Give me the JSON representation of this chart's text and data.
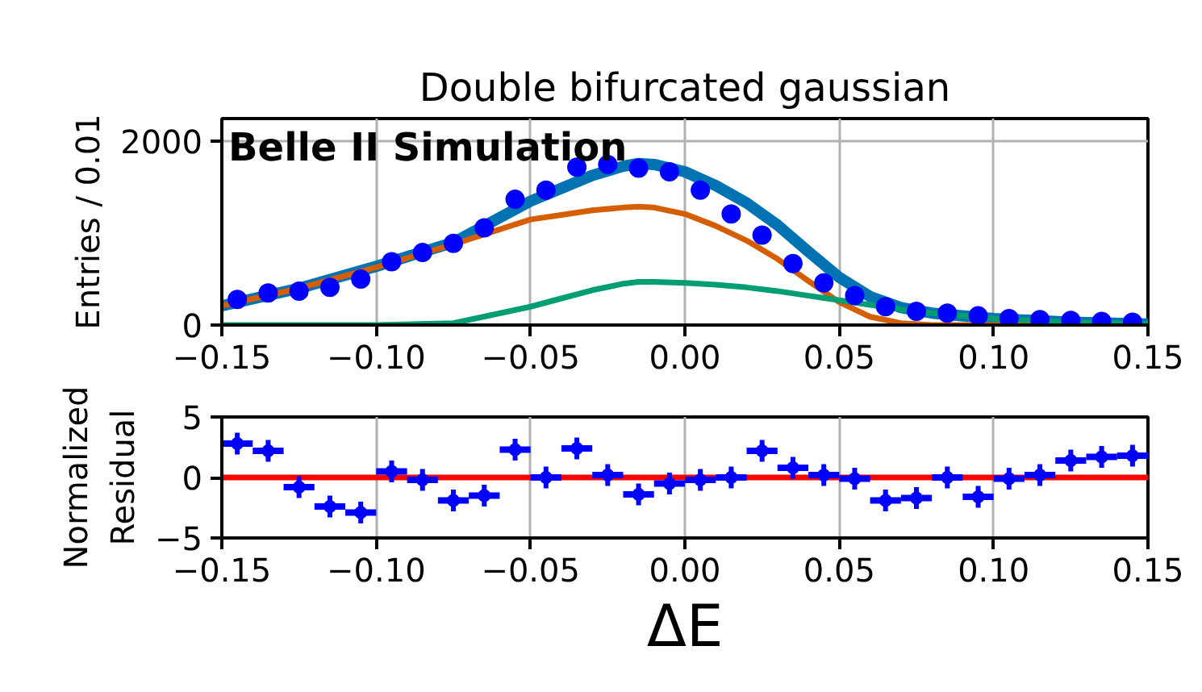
{
  "chart_data": [
    {
      "type": "scatter",
      "title": "Double bifurcated gaussian",
      "ylabel": "Entries / 0.01",
      "annotations": [
        "Belle II Simulation"
      ],
      "xlim": [
        -0.15,
        0.15
      ],
      "xticks": [
        {
          "value": -0.15,
          "label": "−0.15"
        },
        {
          "value": -0.1,
          "label": "−0.10"
        },
        {
          "value": -0.05,
          "label": "−0.05"
        },
        {
          "value": 0,
          "label": "0.00"
        },
        {
          "value": 0.05,
          "label": "0.05"
        },
        {
          "value": 0.1,
          "label": "0.10"
        },
        {
          "value": 0.15,
          "label": "0.15"
        }
      ],
      "ylim": [
        0,
        2250
      ],
      "yticks": [
        0,
        2000
      ],
      "grid": true,
      "series": [
        {
          "type": "line",
          "color": "#0173b2",
          "x": [
            -0.15,
            -0.125,
            -0.1,
            -0.075,
            -0.05,
            -0.04,
            -0.03,
            -0.02,
            -0.015,
            -0.01,
            0,
            0.01,
            0.02,
            0.03,
            0.04,
            0.05,
            0.06,
            0.07,
            0.08,
            0.1,
            0.125,
            0.15
          ],
          "values": [
            210,
            400,
            640,
            900,
            1350,
            1490,
            1630,
            1730,
            1760,
            1750,
            1670,
            1520,
            1330,
            1090,
            800,
            520,
            310,
            190,
            130,
            70,
            30,
            10
          ]
        },
        {
          "type": "line",
          "color": "#d55e00",
          "x": [
            -0.15,
            -0.125,
            -0.1,
            -0.075,
            -0.05,
            -0.04,
            -0.03,
            -0.02,
            -0.015,
            -0.01,
            0,
            0.01,
            0.02,
            0.03,
            0.04,
            0.05,
            0.06,
            0.07,
            0.08,
            0.1,
            0.125,
            0.15
          ],
          "values": [
            210,
            400,
            630,
            880,
            1150,
            1200,
            1250,
            1280,
            1290,
            1280,
            1210,
            1080,
            920,
            720,
            480,
            250,
            90,
            20,
            0,
            0,
            0,
            0
          ]
        },
        {
          "type": "line",
          "color": "#029e73",
          "x": [
            -0.15,
            -0.125,
            -0.1,
            -0.075,
            -0.05,
            -0.04,
            -0.03,
            -0.02,
            -0.015,
            -0.01,
            0,
            0.01,
            0.02,
            0.03,
            0.04,
            0.05,
            0.06,
            0.07,
            0.08,
            0.1,
            0.125,
            0.15
          ],
          "values": [
            0,
            0,
            0,
            20,
            200,
            290,
            380,
            450,
            470,
            470,
            460,
            440,
            410,
            370,
            320,
            270,
            220,
            170,
            130,
            70,
            30,
            10
          ]
        },
        {
          "color": "#0000ff",
          "x": [
            -0.145,
            -0.135,
            -0.125,
            -0.115,
            -0.105,
            -0.095,
            -0.085,
            -0.075,
            -0.065,
            -0.055,
            -0.045,
            -0.035,
            -0.025,
            -0.015,
            -0.005,
            0.005,
            0.015,
            0.025,
            0.035,
            0.045,
            0.055,
            0.065,
            0.075,
            0.085,
            0.095,
            0.105,
            0.115,
            0.125,
            0.135,
            0.145
          ],
          "values": [
            280,
            350,
            370,
            410,
            500,
            690,
            790,
            890,
            1060,
            1370,
            1470,
            1720,
            1750,
            1710,
            1670,
            1470,
            1210,
            980,
            670,
            460,
            320,
            200,
            150,
            130,
            100,
            70,
            60,
            50,
            40,
            30
          ]
        }
      ]
    },
    {
      "type": "scatter",
      "xlabel": "ΔE",
      "ylabel": "Normalized\nResidual",
      "xlim": [
        -0.15,
        0.15
      ],
      "xticks": [
        {
          "value": -0.15,
          "label": "−0.15"
        },
        {
          "value": -0.1,
          "label": "−0.10"
        },
        {
          "value": -0.05,
          "label": "−0.05"
        },
        {
          "value": 0,
          "label": "0.00"
        },
        {
          "value": 0.05,
          "label": "0.05"
        },
        {
          "value": 0.1,
          "label": "0.10"
        },
        {
          "value": 0.15,
          "label": "0.15"
        }
      ],
      "ylim": [
        -5,
        5
      ],
      "yticks": [
        {
          "value": -5,
          "label": "−5"
        },
        0,
        5
      ],
      "grid": "x",
      "ref_lines": [
        {
          "axis": "y",
          "value": 0,
          "color": "#ff0000"
        }
      ],
      "series": [
        {
          "color": "#0000ff",
          "x": [
            -0.145,
            -0.135,
            -0.125,
            -0.115,
            -0.105,
            -0.095,
            -0.085,
            -0.075,
            -0.065,
            -0.055,
            -0.045,
            -0.035,
            -0.025,
            -0.015,
            -0.005,
            0.005,
            0.015,
            0.025,
            0.035,
            0.045,
            0.055,
            0.065,
            0.075,
            0.085,
            0.095,
            0.105,
            0.115,
            0.125,
            0.135,
            0.145
          ],
          "values": [
            2.8,
            2.2,
            -0.8,
            -2.4,
            -2.9,
            0.5,
            -0.2,
            -1.9,
            -1.5,
            2.3,
            0,
            2.4,
            0.2,
            -1.4,
            -0.5,
            -0.2,
            0,
            2.2,
            0.8,
            0.2,
            -0.1,
            -1.9,
            -1.7,
            0,
            -1.6,
            -0.1,
            0.2,
            1.4,
            1.7,
            1.8
          ],
          "errors": [
            0.9,
            0.9,
            0.9,
            0.9,
            0.9,
            0.9,
            0.9,
            0.9,
            0.9,
            0.9,
            0.9,
            0.9,
            0.9,
            0.9,
            0.9,
            0.9,
            0.9,
            0.9,
            0.9,
            0.9,
            0.9,
            0.9,
            0.9,
            0.9,
            0.9,
            0.9,
            0.9,
            0.9,
            0.9,
            0.9
          ],
          "xerrors": [
            0.005,
            0.005,
            0.005,
            0.005,
            0.005,
            0.005,
            0.005,
            0.005,
            0.005,
            0.005,
            0.005,
            0.005,
            0.005,
            0.005,
            0.005,
            0.005,
            0.005,
            0.005,
            0.005,
            0.005,
            0.005,
            0.005,
            0.005,
            0.005,
            0.005,
            0.005,
            0.005,
            0.005,
            0.005,
            0.005
          ]
        }
      ]
    }
  ]
}
